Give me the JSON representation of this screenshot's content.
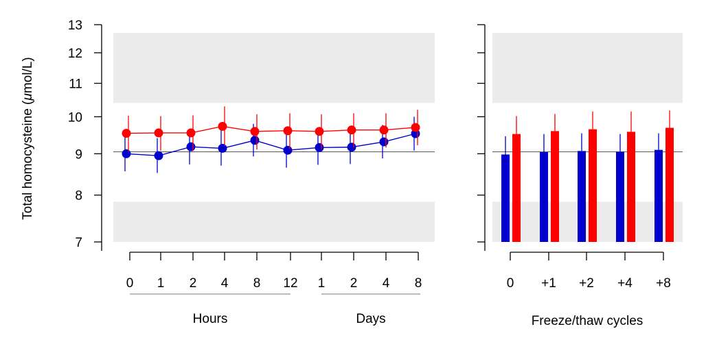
{
  "chart_data": [
    {
      "type": "line",
      "ylabel": "Total homocysteine (μmol/L)",
      "ylabel_parts": [
        "Total homocysteine (",
        "μ",
        "mol/L)"
      ],
      "y_scale": "log",
      "ylim": [
        7,
        13
      ],
      "y_ticks": [
        7,
        8,
        9,
        10,
        11,
        12,
        13
      ],
      "shaded_bands": [
        [
          7,
          7.85
        ],
        [
          10.4,
          12.7
        ]
      ],
      "reference_line": 9.05,
      "categories": [
        "0",
        "1",
        "2",
        "4",
        "8",
        "12",
        "1",
        "2",
        "4",
        "8"
      ],
      "category_groups": [
        {
          "label": "Hours",
          "from": 0,
          "to": 5
        },
        {
          "label": "Days",
          "from": 6,
          "to": 9
        }
      ],
      "series": [
        {
          "color": "#0000cc",
          "values": [
            9.0,
            8.95,
            9.18,
            9.14,
            9.35,
            9.09,
            9.16,
            9.17,
            9.31,
            9.53
          ],
          "error_low": [
            8.56,
            8.52,
            8.73,
            8.7,
            8.93,
            8.65,
            8.72,
            8.74,
            8.88,
            9.08
          ],
          "error_high": [
            9.46,
            9.41,
            9.65,
            9.62,
            9.8,
            9.55,
            9.63,
            9.62,
            9.77,
            10.0
          ]
        },
        {
          "color": "#ff0000",
          "values": [
            9.54,
            9.55,
            9.55,
            9.73,
            9.59,
            9.61,
            9.59,
            9.63,
            9.63,
            9.7
          ],
          "error_low": [
            9.06,
            9.08,
            9.07,
            9.2,
            9.11,
            9.12,
            9.12,
            9.16,
            9.16,
            9.22
          ],
          "error_high": [
            10.03,
            10.02,
            10.04,
            10.3,
            10.07,
            10.1,
            10.07,
            10.1,
            10.1,
            10.2
          ]
        }
      ]
    },
    {
      "type": "bar",
      "xlabel": "Freeze/thaw cycles",
      "y_scale": "log",
      "ylim": [
        7,
        13
      ],
      "y_ticks": [
        7,
        8,
        9,
        10,
        11,
        12,
        13
      ],
      "shaded_bands": [
        [
          7,
          7.85
        ],
        [
          10.4,
          12.7
        ]
      ],
      "reference_line": 9.05,
      "categories": [
        "0",
        "+1",
        "+2",
        "+4",
        "+8"
      ],
      "series": [
        {
          "color": "#0000cc",
          "values": [
            8.98,
            9.04,
            9.07,
            9.05,
            9.1
          ],
          "error_high": [
            9.46,
            9.52,
            9.54,
            9.52,
            9.54
          ]
        },
        {
          "color": "#ff0000",
          "values": [
            9.52,
            9.6,
            9.65,
            9.58,
            9.69
          ],
          "error_high": [
            10.02,
            10.08,
            10.15,
            10.15,
            10.18
          ]
        }
      ]
    }
  ]
}
